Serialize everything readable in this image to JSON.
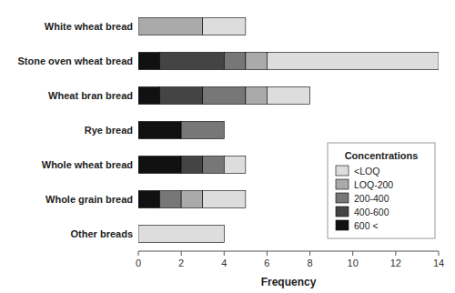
{
  "chart_data": {
    "type": "bar",
    "orientation": "horizontal",
    "stacked": true,
    "categories": [
      "Other breads",
      "Whole grain bread",
      "Whole wheat bread",
      "Rye bread",
      "Wheat bran bread",
      "Stone oven wheat bread",
      "White wheat bread"
    ],
    "series": [
      {
        "name": "600 <",
        "color": "#111111",
        "values": [
          0,
          1,
          2,
          2,
          1,
          1,
          0
        ]
      },
      {
        "name": "400-600",
        "color": "#444444",
        "values": [
          0,
          0,
          1,
          0,
          2,
          3,
          0
        ]
      },
      {
        "name": "200-400",
        "color": "#777777",
        "values": [
          0,
          1,
          1,
          2,
          2,
          1,
          0
        ]
      },
      {
        "name": "LOQ-200",
        "color": "#aaaaaa",
        "values": [
          0,
          1,
          0,
          0,
          1,
          1,
          3
        ]
      },
      {
        "name": "<LOQ",
        "color": "#dddddd",
        "values": [
          4,
          2,
          1,
          0,
          2,
          8,
          2
        ]
      }
    ],
    "xlabel": "Frequency",
    "xlim": [
      0,
      14
    ],
    "xticks": [
      0,
      2,
      4,
      6,
      8,
      10,
      12,
      14
    ],
    "legend": "lower right",
    "legend_title": "Concentrations",
    "grid": false
  }
}
